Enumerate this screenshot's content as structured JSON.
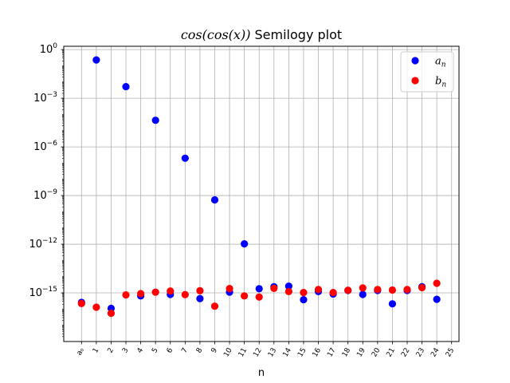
{
  "chart_data": {
    "type": "scatter",
    "title_math": "cos(cos(x))",
    "title_rest": " Semilogy plot",
    "xlabel": "n",
    "ylabel": "",
    "y_scale": "log",
    "ylim": [
      1e-18,
      1.6
    ],
    "xlim": [
      -1.2,
      25.5
    ],
    "grid": true,
    "legend_position": "top-right",
    "x_tick_labels": [
      "a₀",
      "1",
      "2",
      "3",
      "4",
      "5",
      "6",
      "7",
      "8",
      "9",
      "10",
      "11",
      "12",
      "13",
      "14",
      "15",
      "16",
      "17",
      "18",
      "19",
      "20",
      "21",
      "22",
      "23",
      "24",
      "25"
    ],
    "y_ticks": [
      {
        "value": 1,
        "base": "10",
        "exp": "0"
      },
      {
        "value": 0.001,
        "base": "10",
        "exp": "−3"
      },
      {
        "value": 1e-06,
        "base": "10",
        "exp": "−6"
      },
      {
        "value": 1e-09,
        "base": "10",
        "exp": "−9"
      },
      {
        "value": 1e-12,
        "base": "10",
        "exp": "−12"
      },
      {
        "value": 1e-15,
        "base": "10",
        "exp": "−15"
      }
    ],
    "series": [
      {
        "name": "a",
        "name_sub": "n",
        "color": "#0000ff",
        "points": [
          {
            "x": 0,
            "y": 2.6e-16
          },
          {
            "x": 1,
            "y": 0.23
          },
          {
            "x": 2,
            "y": 1.1e-16
          },
          {
            "x": 3,
            "y": 0.0052
          },
          {
            "x": 4,
            "y": 6.5e-16
          },
          {
            "x": 5,
            "y": 4.4e-05
          },
          {
            "x": 6,
            "y": 8e-16
          },
          {
            "x": 7,
            "y": 2e-07
          },
          {
            "x": 8,
            "y": 4.4e-16
          },
          {
            "x": 9,
            "y": 5.4e-10
          },
          {
            "x": 10,
            "y": 1.1e-15
          },
          {
            "x": 11,
            "y": 1.05e-12
          },
          {
            "x": 12,
            "y": 1.8e-15
          },
          {
            "x": 13,
            "y": 2.4e-15
          },
          {
            "x": 14,
            "y": 2.6e-15
          },
          {
            "x": 15,
            "y": 3.8e-16
          },
          {
            "x": 16,
            "y": 1.2e-15
          },
          {
            "x": 17,
            "y": 8.5e-16
          },
          {
            "x": 18,
            "y": 1.4e-15
          },
          {
            "x": 19,
            "y": 8e-16
          },
          {
            "x": 20,
            "y": 1.4e-15
          },
          {
            "x": 21,
            "y": 2.1e-16
          },
          {
            "x": 22,
            "y": 1.4e-15
          },
          {
            "x": 23,
            "y": 2.4e-15
          },
          {
            "x": 24,
            "y": 4e-16
          }
        ]
      },
      {
        "name": "b",
        "name_sub": "n",
        "color": "#ff0000",
        "points": [
          {
            "x": 0,
            "y": 2.2e-16
          },
          {
            "x": 1,
            "y": 1.3e-16
          },
          {
            "x": 2,
            "y": 5.5e-17
          },
          {
            "x": 3,
            "y": 7.5e-16
          },
          {
            "x": 4,
            "y": 9e-16
          },
          {
            "x": 5,
            "y": 1.1e-15
          },
          {
            "x": 6,
            "y": 1.3e-15
          },
          {
            "x": 7,
            "y": 7.8e-16
          },
          {
            "x": 8,
            "y": 1.35e-15
          },
          {
            "x": 9,
            "y": 1.5e-16
          },
          {
            "x": 10,
            "y": 1.85e-15
          },
          {
            "x": 11,
            "y": 6.5e-16
          },
          {
            "x": 12,
            "y": 5.5e-16
          },
          {
            "x": 13,
            "y": 1.9e-15
          },
          {
            "x": 14,
            "y": 1.2e-15
          },
          {
            "x": 15,
            "y": 1.05e-15
          },
          {
            "x": 16,
            "y": 1.6e-15
          },
          {
            "x": 17,
            "y": 1.05e-15
          },
          {
            "x": 18,
            "y": 1.45e-15
          },
          {
            "x": 19,
            "y": 2e-15
          },
          {
            "x": 20,
            "y": 1.6e-15
          },
          {
            "x": 21,
            "y": 1.5e-15
          },
          {
            "x": 22,
            "y": 1.6e-15
          },
          {
            "x": 23,
            "y": 2.1e-15
          },
          {
            "x": 24,
            "y": 3.9e-15
          }
        ]
      }
    ]
  }
}
